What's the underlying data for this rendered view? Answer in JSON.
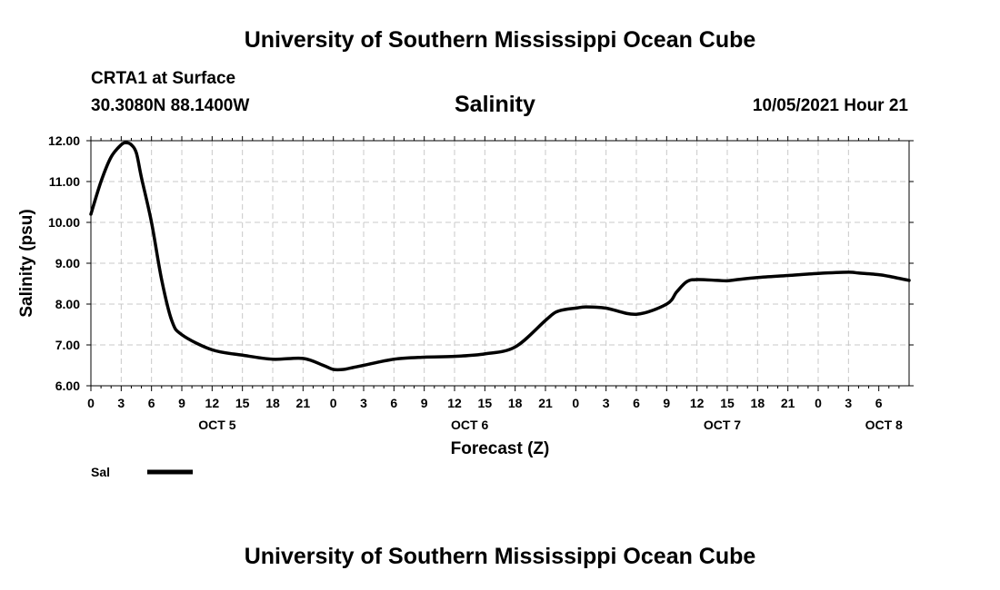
{
  "header": {
    "title": "University of Southern Mississippi Ocean Cube",
    "station": "CRTA1 at Surface",
    "coords": "30.3080N  88.1400W",
    "issued": "10/05/2021 Hour 21"
  },
  "footer": {
    "title": "University of Southern Mississippi Ocean Cube"
  },
  "chart_data": {
    "type": "line",
    "title": "Salinity",
    "xlabel": "Forecast (Z)",
    "ylabel": "Salinity (psu)",
    "ylim": [
      6.0,
      12.0
    ],
    "y_ticks": [
      "6.00",
      "7.00",
      "8.00",
      "9.00",
      "10.00",
      "11.00",
      "12.00"
    ],
    "xlim": [
      0,
      81
    ],
    "x_tick_step_hours": 3,
    "x_tick_labels": [
      "0",
      "3",
      "6",
      "9",
      "12",
      "15",
      "18",
      "21",
      "0",
      "3",
      "6",
      "9",
      "12",
      "15",
      "18",
      "21",
      "0",
      "3",
      "6",
      "9",
      "12",
      "15",
      "18",
      "21",
      "0",
      "3",
      "6"
    ],
    "date_labels": [
      {
        "label": "OCT 5",
        "hour": 12.5
      },
      {
        "label": "OCT 6",
        "hour": 37.5
      },
      {
        "label": "OCT 7",
        "hour": 62.5
      },
      {
        "label": "OCT 8",
        "hour": 78.5
      }
    ],
    "grid": true,
    "legend": {
      "label": "Sal",
      "placement": "bottom-left"
    },
    "colors": {
      "line": "#000000",
      "grid": "#c8c8c8"
    },
    "series": [
      {
        "name": "Sal",
        "x": [
          0,
          1,
          2,
          3,
          3.5,
          4,
          4.5,
          5,
          6,
          7,
          8,
          9,
          12,
          15,
          18,
          21,
          23,
          24,
          25,
          26,
          27,
          30,
          33,
          36,
          39,
          42,
          45,
          46,
          47,
          48,
          49,
          51,
          54,
          57,
          58,
          59,
          60,
          62,
          63,
          64,
          66,
          69,
          72,
          75,
          76,
          78,
          79,
          80,
          81
        ],
        "values": [
          10.2,
          11.0,
          11.6,
          11.9,
          11.95,
          11.9,
          11.7,
          11.1,
          10.0,
          8.6,
          7.6,
          7.25,
          6.88,
          6.75,
          6.65,
          6.67,
          6.5,
          6.4,
          6.4,
          6.45,
          6.5,
          6.65,
          6.7,
          6.72,
          6.78,
          6.95,
          7.6,
          7.8,
          7.87,
          7.9,
          7.93,
          7.9,
          7.75,
          8.0,
          8.3,
          8.55,
          8.6,
          8.58,
          8.57,
          8.6,
          8.65,
          8.7,
          8.75,
          8.78,
          8.76,
          8.72,
          8.68,
          8.63,
          8.58
        ]
      }
    ]
  }
}
